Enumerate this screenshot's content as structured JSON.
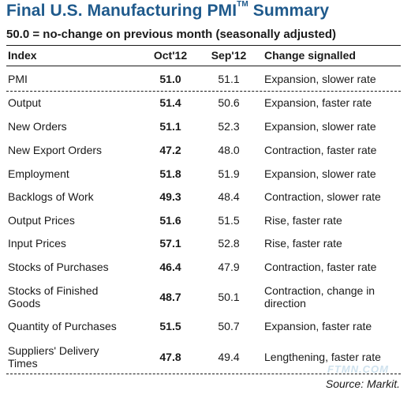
{
  "title": {
    "text": "Final U.S. Manufacturing PMI",
    "trademark": "TM",
    "suffix": "Summary"
  },
  "subtitle": "50.0 = no-change on previous month (seasonally adjusted)",
  "headers": {
    "index": "Index",
    "oct": "Oct'12",
    "sep": "Sep'12",
    "change": "Change signalled"
  },
  "rows": [
    {
      "index": [
        "PMI"
      ],
      "oct": "51.0",
      "sep": "51.1",
      "change": [
        "Expansion, slower rate"
      ]
    },
    {
      "index": [
        "Output"
      ],
      "oct": "51.4",
      "sep": "50.6",
      "change": [
        "Expansion, faster rate"
      ]
    },
    {
      "index": [
        "New Orders"
      ],
      "oct": "51.1",
      "sep": "52.3",
      "change": [
        "Expansion, slower rate"
      ]
    },
    {
      "index": [
        "New Export Orders"
      ],
      "oct": "47.2",
      "sep": "48.0",
      "change": [
        "Contraction, faster rate"
      ]
    },
    {
      "index": [
        "Employment"
      ],
      "oct": "51.8",
      "sep": "51.9",
      "change": [
        "Expansion, slower rate"
      ]
    },
    {
      "index": [
        "Backlogs of Work"
      ],
      "oct": "49.3",
      "sep": "48.4",
      "change": [
        "Contraction, slower rate"
      ]
    },
    {
      "index": [
        "Output Prices"
      ],
      "oct": "51.6",
      "sep": "51.5",
      "change": [
        "Rise, faster rate"
      ]
    },
    {
      "index": [
        "Input Prices"
      ],
      "oct": "57.1",
      "sep": "52.8",
      "change": [
        "Rise, faster rate"
      ]
    },
    {
      "index": [
        "Stocks of Purchases"
      ],
      "oct": "46.4",
      "sep": "47.9",
      "change": [
        "Contraction, faster rate"
      ]
    },
    {
      "index": [
        "Stocks of Finished",
        "Goods"
      ],
      "oct": "48.7",
      "sep": "50.1",
      "change": [
        "Contraction, change in",
        "direction"
      ]
    },
    {
      "index": [
        "Quantity of Purchases"
      ],
      "oct": "51.5",
      "sep": "50.7",
      "change": [
        "Expansion, faster rate"
      ]
    },
    {
      "index": [
        "Suppliers' Delivery",
        "Times"
      ],
      "oct": "47.8",
      "sep": "49.4",
      "change": [
        "Lengthening, faster rate"
      ]
    }
  ],
  "source": "Source: Markit.",
  "watermark": "FTMN.COM",
  "colors": {
    "title": "#1f5a8c",
    "text": "#1a1a1a",
    "watermark": "#cfe2ee"
  }
}
